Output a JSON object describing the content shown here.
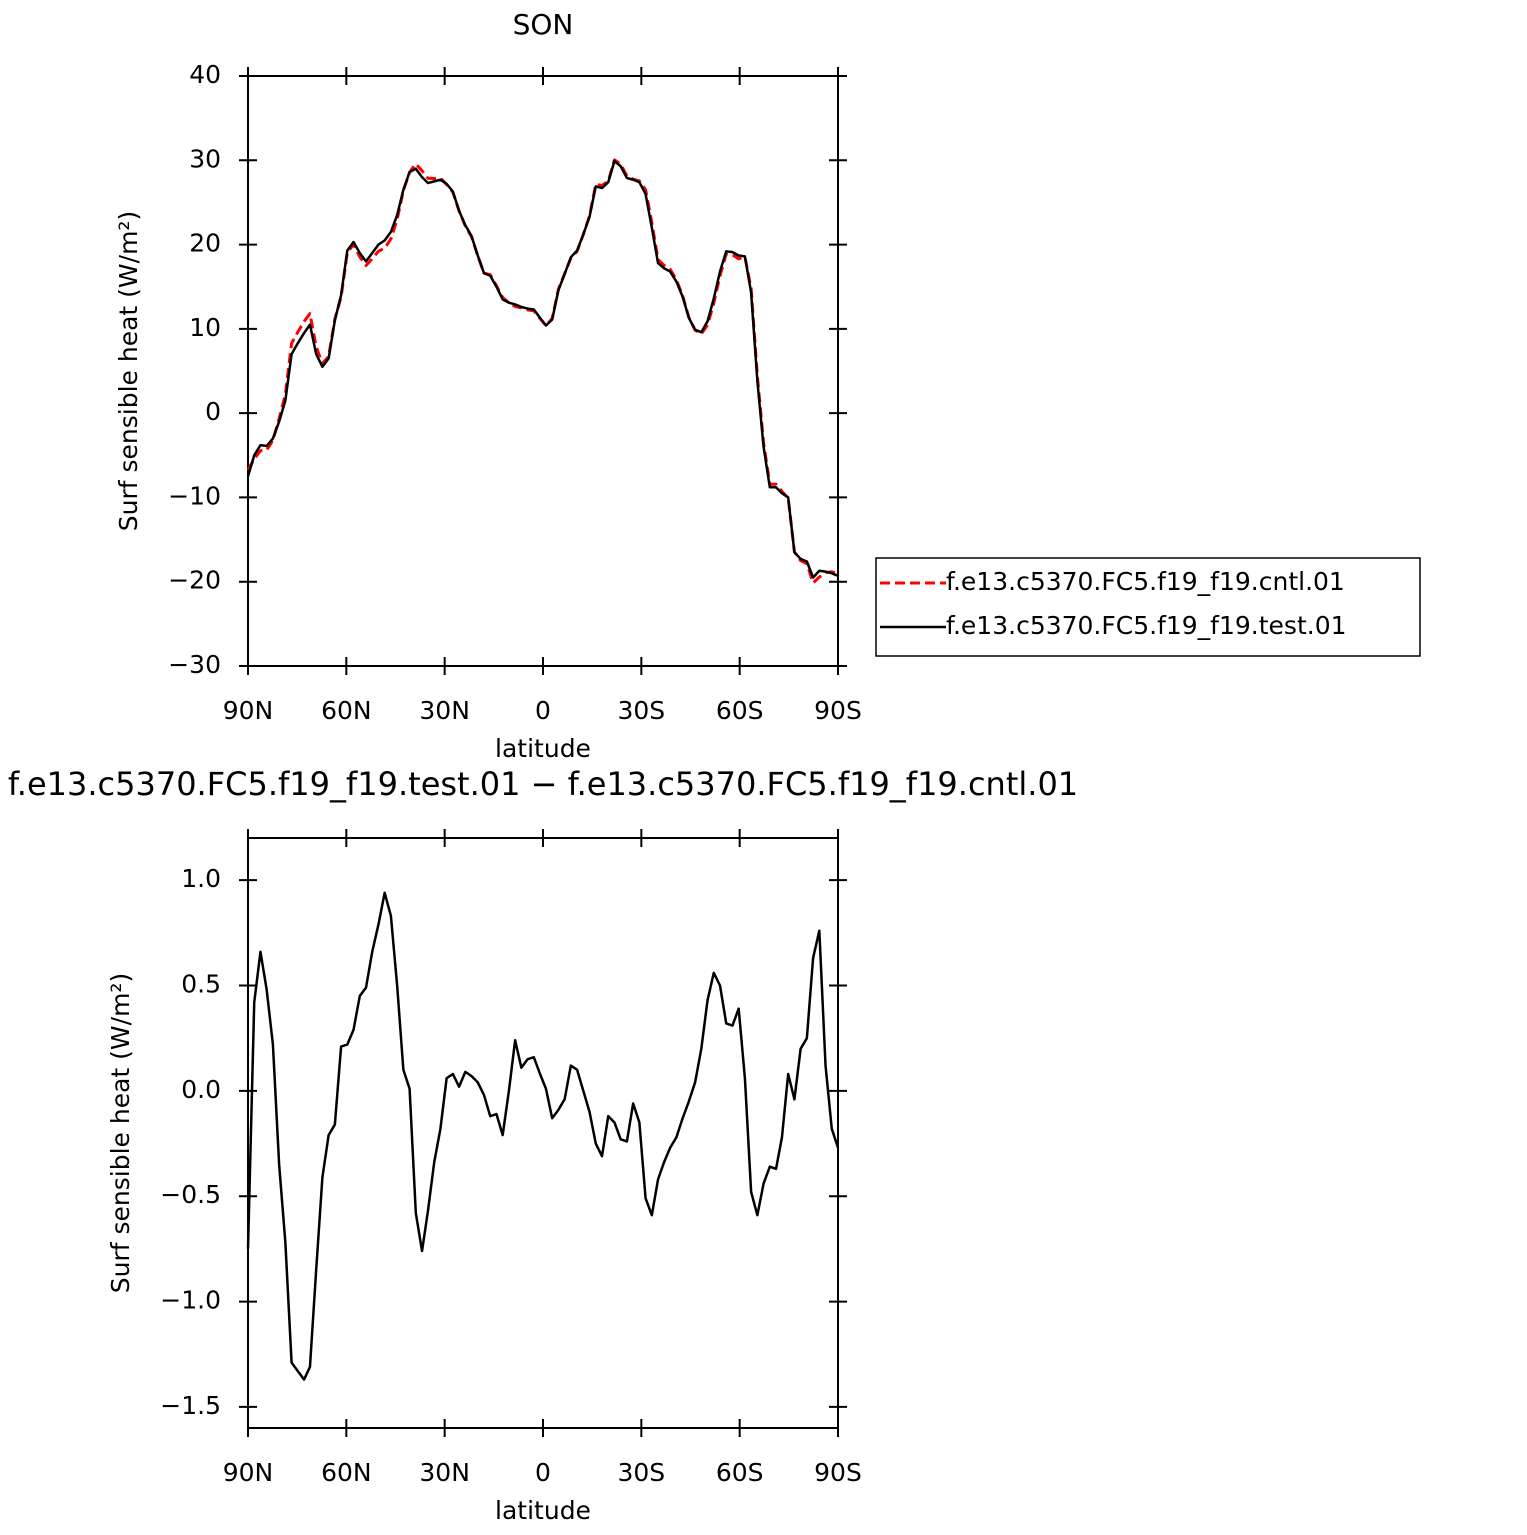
{
  "chart_data": [
    {
      "type": "line",
      "title": "SON",
      "xlabel": "latitude",
      "ylabel": "Surf sensible heat (W/m²)",
      "xlim": [
        90,
        -90
      ],
      "xticks": [
        {
          "value": 90,
          "label": "90N"
        },
        {
          "value": 60,
          "label": "60N"
        },
        {
          "value": 30,
          "label": "30N"
        },
        0,
        {
          "value": -30,
          "label": "30S"
        },
        {
          "value": -60,
          "label": "60S"
        },
        {
          "value": -90,
          "label": "90S"
        }
      ],
      "ylim": [
        -30,
        40
      ],
      "yticks": [
        {
          "value": -30,
          "label": "−30"
        },
        {
          "value": -20,
          "label": "−20"
        },
        {
          "value": -10,
          "label": "−10"
        },
        0,
        10,
        20,
        30,
        40
      ],
      "legend": "right",
      "x": [
        90,
        88.1,
        86.2,
        84.3,
        82.4,
        80.5,
        78.6,
        76.7,
        74.8,
        72.9,
        71.1,
        69.2,
        67.3,
        65.4,
        63.5,
        61.6,
        59.7,
        57.8,
        55.9,
        54,
        52.1,
        50.2,
        48.3,
        46.4,
        44.5,
        42.6,
        40.7,
        38.8,
        36.9,
        35.1,
        33.2,
        31.3,
        29.4,
        27.5,
        25.6,
        23.7,
        21.8,
        19.9,
        18,
        16.1,
        14.2,
        12.3,
        10.4,
        8.5,
        6.6,
        4.7,
        2.8,
        0.9,
        -0.9,
        -2.8,
        -4.7,
        -6.6,
        -8.5,
        -10.4,
        -12.3,
        -14.2,
        -16.1,
        -18,
        -19.9,
        -21.8,
        -23.7,
        -25.6,
        -27.5,
        -29.4,
        -31.3,
        -33.2,
        -35.1,
        -36.9,
        -38.8,
        -40.7,
        -42.6,
        -44.5,
        -46.4,
        -48.3,
        -50.2,
        -52.1,
        -54,
        -55.9,
        -57.8,
        -59.7,
        -61.6,
        -63.5,
        -65.4,
        -67.3,
        -69.2,
        -71.1,
        -72.9,
        -74.8,
        -76.7,
        -78.6,
        -80.5,
        -82.4,
        -84.3,
        -86.2,
        -88.1,
        -90
      ],
      "series": [
        {
          "name": "f.e13.c5370.FC5.f19_f19.cntl.01",
          "color": "#ff0000",
          "linestyle": "dashed",
          "values": [
            -6.75,
            -5.42,
            -4.46,
            -4.38,
            -3.22,
            -0.65,
            2.22,
            8.29,
            9.63,
            10.87,
            11.81,
            7.85,
            5.91,
            6.71,
            11.16,
            13.79,
            19.08,
            20.01,
            18.55,
            17.51,
            18.34,
            19.21,
            19.56,
            20.67,
            23.0,
            26.4,
            28.59,
            29.58,
            28.76,
            27.87,
            27.84,
            27.88,
            27.14,
            26.22,
            23.98,
            22.21,
            20.93,
            18.66,
            16.62,
            16.42,
            15.11,
            13.71,
            13.1,
            12.66,
            12.49,
            12.25,
            12.14,
            11.22,
            10.39,
            11.23,
            14.69,
            16.54,
            18.38,
            19.2,
            21.2,
            23.4,
            27.15,
            27.01,
            27.52,
            30.05,
            29.53,
            28.14,
            27.76,
            27.55,
            26.51,
            22.59,
            18.22,
            17.54,
            17.07,
            15.82,
            13.93,
            11.35,
            9.86,
            9.4,
            10.47,
            13.04,
            16.3,
            18.88,
            18.79,
            18.31,
            18.54,
            14.78,
            4.39,
            -3.56,
            -8.44,
            -8.43,
            -9.28,
            -10.08,
            -16.46,
            -17.5,
            -17.85,
            -20.13,
            -19.46,
            -18.92,
            -18.82,
            -19.03
          ]
        },
        {
          "name": "f.e13.c5370.FC5.f19_f19.test.01",
          "color": "#000000",
          "linestyle": "solid",
          "values": [
            -7.5,
            -5,
            -3.8,
            -3.9,
            -3,
            -1,
            1.5,
            7,
            8.3,
            9.5,
            10.5,
            7,
            5.5,
            6.5,
            11,
            14,
            19.3,
            20.3,
            19,
            18,
            19,
            20,
            20.5,
            21.5,
            23.5,
            26.5,
            28.6,
            29,
            28,
            27.3,
            27.5,
            27.7,
            27.2,
            26.3,
            24,
            22.3,
            21,
            18.7,
            16.6,
            16.3,
            15,
            13.5,
            13.1,
            12.9,
            12.6,
            12.4,
            12.3,
            11.3,
            10.4,
            11.1,
            14.6,
            16.5,
            18.5,
            19.3,
            21.2,
            23.3,
            26.9,
            26.7,
            27.4,
            29.9,
            29.3,
            27.9,
            27.7,
            27.4,
            26,
            22,
            17.8,
            17.2,
            16.8,
            15.6,
            13.8,
            11.3,
            9.9,
            9.6,
            10.9,
            13.6,
            16.8,
            19.2,
            19.1,
            18.7,
            18.6,
            14.3,
            3.8,
            -4,
            -8.8,
            -8.8,
            -9.5,
            -10,
            -16.5,
            -17.3,
            -17.6,
            -19.5,
            -18.7,
            -18.8,
            -19,
            -19.3
          ]
        }
      ]
    },
    {
      "type": "line",
      "title": "f.e13.c5370.FC5.f19_f19.test.01 − f.e13.c5370.FC5.f19_f19.cntl.01",
      "xlabel": "latitude",
      "ylabel": "Surf sensible heat (W/m²)",
      "xlim": [
        90,
        -90
      ],
      "xticks": [
        {
          "value": 90,
          "label": "90N"
        },
        {
          "value": 60,
          "label": "60N"
        },
        {
          "value": 30,
          "label": "30N"
        },
        0,
        {
          "value": -30,
          "label": "30S"
        },
        {
          "value": -60,
          "label": "60S"
        },
        {
          "value": -90,
          "label": "90S"
        }
      ],
      "ylim": [
        -1.6,
        1.2
      ],
      "yticks": [
        {
          "value": -1.5,
          "label": "−1.5"
        },
        {
          "value": -1.0,
          "label": "−1.0"
        },
        {
          "value": -0.5,
          "label": "−0.5"
        },
        {
          "value": 0,
          "label": "0.0"
        },
        0.5,
        {
          "value": 1.0,
          "label": "1.0"
        }
      ],
      "x": [
        90,
        88.1,
        86.2,
        84.3,
        82.4,
        80.5,
        78.6,
        76.7,
        74.8,
        72.9,
        71.1,
        69.2,
        67.3,
        65.4,
        63.5,
        61.6,
        59.7,
        57.8,
        55.9,
        54,
        52.1,
        50.2,
        48.3,
        46.4,
        44.5,
        42.6,
        40.7,
        38.8,
        36.9,
        35.1,
        33.2,
        31.3,
        29.4,
        27.5,
        25.6,
        23.7,
        21.8,
        19.9,
        18,
        16.1,
        14.2,
        12.3,
        10.4,
        8.5,
        6.6,
        4.7,
        2.8,
        0.9,
        -0.9,
        -2.8,
        -4.7,
        -6.6,
        -8.5,
        -10.4,
        -12.3,
        -14.2,
        -16.1,
        -18,
        -19.9,
        -21.8,
        -23.7,
        -25.6,
        -27.5,
        -29.4,
        -31.3,
        -33.2,
        -35.1,
        -36.9,
        -38.8,
        -40.7,
        -42.6,
        -44.5,
        -46.4,
        -48.3,
        -50.2,
        -52.1,
        -54,
        -55.9,
        -57.8,
        -59.7,
        -61.6,
        -63.5,
        -65.4,
        -67.3,
        -69.2,
        -71.1,
        -72.9,
        -74.8,
        -76.7,
        -78.6,
        -80.5,
        -82.4,
        -84.3,
        -86.2,
        -88.1,
        -90
      ],
      "color": "#000000",
      "values": [
        -0.75,
        0.42,
        0.66,
        0.48,
        0.22,
        -0.35,
        -0.72,
        -1.29,
        -1.33,
        -1.37,
        -1.31,
        -0.85,
        -0.41,
        -0.21,
        -0.16,
        0.21,
        0.22,
        0.29,
        0.45,
        0.49,
        0.66,
        0.79,
        0.94,
        0.83,
        0.5,
        0.1,
        0.01,
        -0.58,
        -0.76,
        -0.57,
        -0.34,
        -0.18,
        0.06,
        0.08,
        0.02,
        0.09,
        0.07,
        0.04,
        -0.02,
        -0.12,
        -0.11,
        -0.21,
        0,
        0.24,
        0.11,
        0.15,
        0.16,
        0.08,
        0.01,
        -0.13,
        -0.09,
        -0.04,
        0.12,
        0.1,
        0,
        -0.1,
        -0.25,
        -0.31,
        -0.12,
        -0.15,
        -0.23,
        -0.24,
        -0.06,
        -0.15,
        -0.51,
        -0.59,
        -0.42,
        -0.34,
        -0.27,
        -0.22,
        -0.13,
        -0.05,
        0.04,
        0.2,
        0.43,
        0.56,
        0.5,
        0.32,
        0.31,
        0.39,
        0.06,
        -0.48,
        -0.59,
        -0.44,
        -0.36,
        -0.37,
        -0.22,
        0.08,
        -0.04,
        0.2,
        0.25,
        0.63,
        0.76,
        0.12,
        -0.18,
        -0.27
      ]
    }
  ]
}
